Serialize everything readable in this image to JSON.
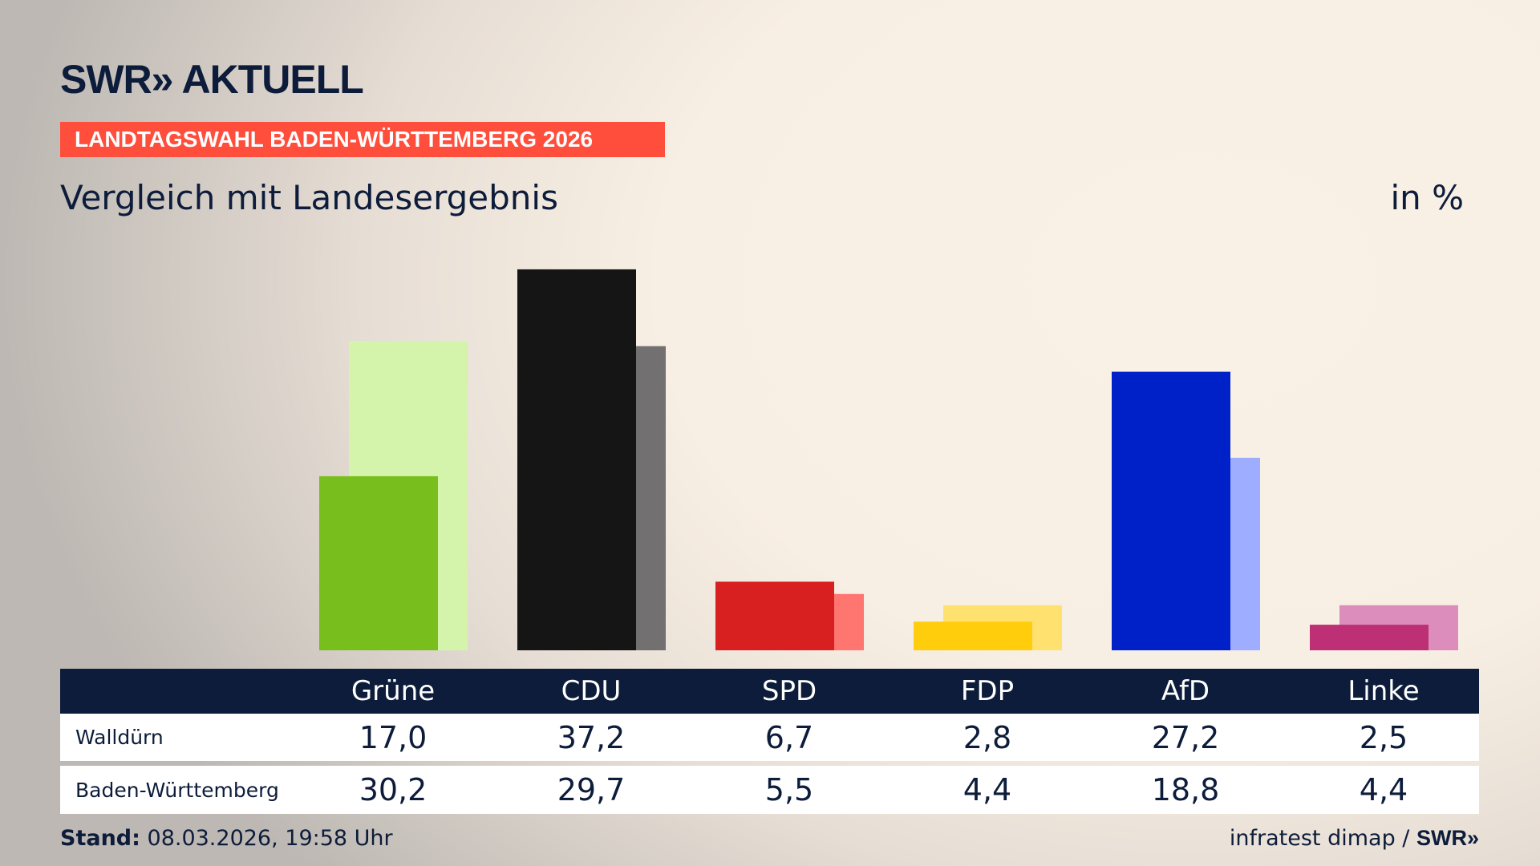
{
  "header": {
    "logo": "SWR» AKTUELL",
    "banner": "LANDTAGSWAHL BADEN-WÜRTTEMBERG 2026",
    "subtitle": "Vergleich mit Landesergebnis",
    "unit": "in %"
  },
  "chart_data": {
    "type": "bar",
    "categories": [
      "Grüne",
      "CDU",
      "SPD",
      "FDP",
      "AfD",
      "Linke"
    ],
    "series": [
      {
        "name": "Walldürn",
        "values": [
          17.0,
          37.2,
          6.7,
          2.8,
          27.2,
          2.5
        ],
        "colors": [
          "#78be1d",
          "#151515",
          "#d7201f",
          "#ffcd0b",
          "#0020c8",
          "#be3075"
        ]
      },
      {
        "name": "Baden-Württemberg",
        "values": [
          30.2,
          29.7,
          5.5,
          4.4,
          18.8,
          4.4
        ],
        "colors": [
          "#d5f4ab",
          "#727070",
          "#ff7570",
          "#ffe170",
          "#9eadff",
          "#dd8dbb"
        ]
      }
    ],
    "ylim": [
      0,
      37.2
    ],
    "display_values": {
      "Walldürn": [
        "17,0",
        "37,2",
        "6,7",
        "2,8",
        "27,2",
        "2,5"
      ],
      "Baden-Württemberg": [
        "30,2",
        "29,7",
        "5,5",
        "4,4",
        "18,8",
        "4,4"
      ]
    }
  },
  "footer": {
    "stand_label": "Stand:",
    "stand_value": "08.03.2026, 19:58 Uhr",
    "source": "infratest dimap / ",
    "source_logo": "SWR»"
  }
}
